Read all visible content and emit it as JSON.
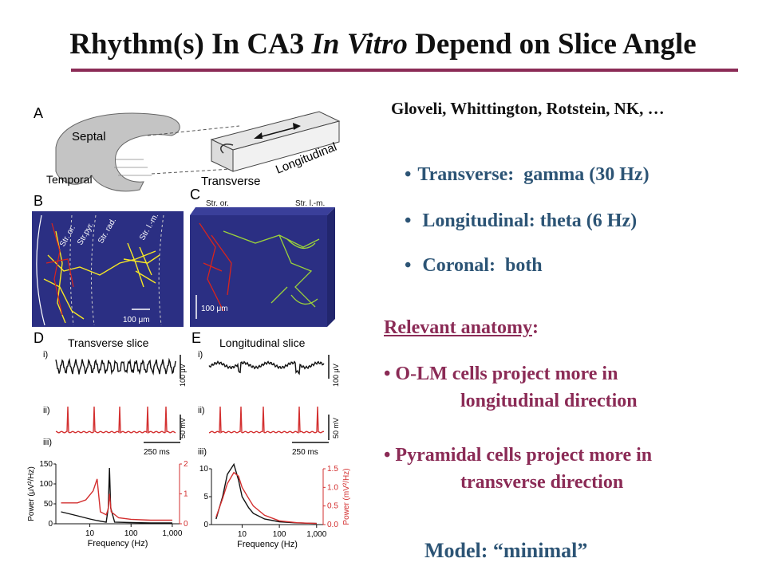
{
  "slide": {
    "title_parts": [
      "Rhythm(s) In CA3 ",
      "In Vitro",
      " Depend on Slice Angle"
    ],
    "authors": "Gloveli, Whittington, Rotstein, NK, …",
    "bullets": [
      {
        "label": "Transverse:",
        "value": "gamma (30 Hz)"
      },
      {
        "label": "Longitudinal:",
        "value": "theta (6 Hz)"
      },
      {
        "label": "Coronal:",
        "value": "both"
      }
    ],
    "anatomy": {
      "heading": "Relevant anatomy",
      "colon": ":",
      "items": [
        {
          "line1": "O-LM cells project more in",
          "line2": "longitudinal direction"
        },
        {
          "line1": "Pyramidal cells project more in",
          "line2": "transverse direction"
        }
      ]
    },
    "model": "Model:  “minimal”",
    "colors": {
      "accent": "#8b2b56",
      "bullet_text": "#2c5475",
      "trace_red": "#d32f2f",
      "panel_blue": "#2b2f83"
    }
  },
  "figure": {
    "panel_A": {
      "letter": "A",
      "septal": "Septal",
      "temporal": "Temporal",
      "transverse": "Transverse",
      "longitudinal": "Longitudinal"
    },
    "panel_B": {
      "letter": "B",
      "layers": [
        "Str. or.",
        "Str.pyr.",
        "Str. rad.",
        "Str. l.-m."
      ],
      "scale": "100 μm"
    },
    "panel_C": {
      "letter": "C",
      "layer_left": "Str. or.",
      "layer_right": "Str. l.-m.",
      "scale": "100 μm"
    },
    "panel_D": {
      "letter": "D",
      "title": "Transverse slice",
      "i": "i)",
      "ii": "ii)",
      "iii": "iii)",
      "v_scale": "100 μV",
      "mv_scale": "50 mV",
      "time_scale": "250 ms"
    },
    "panel_E": {
      "letter": "E",
      "title": "Longitudinal slice",
      "i": "i)",
      "ii": "ii)",
      "iii": "iii)",
      "v_scale": "100 μV",
      "mv_scale": "50 mV",
      "time_scale": "250 ms"
    }
  },
  "chart_data": [
    {
      "type": "line",
      "title": "",
      "x_scale": "log",
      "xlabel": "Frequency (Hz)",
      "x_ticks": [
        "10",
        "100",
        "1,000"
      ],
      "ylabel_left": "Power (μV²/Hz)",
      "ylim_left": [
        0,
        150
      ],
      "y_ticks_left": [
        "0",
        "50",
        "100",
        "150"
      ],
      "ylabel_right": "",
      "ylim_right": [
        0,
        2
      ],
      "y_ticks_right": [
        "0",
        "1",
        "2"
      ],
      "series": [
        {
          "color": "#111111",
          "x": [
            2,
            5,
            10,
            15,
            25,
            28,
            30,
            32,
            40,
            100,
            300,
            1000
          ],
          "y": [
            30,
            20,
            12,
            8,
            4,
            40,
            140,
            40,
            4,
            3,
            2,
            2
          ]
        },
        {
          "color": "#d32f2f",
          "x": [
            2,
            5,
            8,
            12,
            15,
            18,
            25,
            28,
            30,
            33,
            50,
            100,
            300,
            1000
          ],
          "y": [
            0.7,
            0.7,
            0.8,
            1.1,
            1.5,
            0.4,
            0.3,
            0.5,
            1.0,
            0.4,
            0.2,
            0.15,
            0.12,
            0.12
          ]
        }
      ]
    },
    {
      "type": "line",
      "title": "",
      "x_scale": "log",
      "xlabel": "Frequency (Hz)",
      "x_ticks": [
        "10",
        "100",
        "1,000"
      ],
      "ylabel_left": "",
      "ylim_left": [
        0,
        10
      ],
      "y_ticks_left": [
        "0",
        "5",
        "10"
      ],
      "ylabel_right": "Power (mV²/Hz)",
      "ylim_right": [
        0,
        1.5
      ],
      "y_ticks_right": [
        "0.0",
        "0.5",
        "1.0",
        "1.5"
      ],
      "series": [
        {
          "color": "#111111",
          "x": [
            2,
            3,
            4,
            6,
            8,
            10,
            15,
            20,
            40,
            100,
            300,
            1000
          ],
          "y": [
            1,
            5,
            9,
            10.8,
            8,
            5,
            3,
            2,
            1,
            0.5,
            0.3,
            0.2
          ]
        },
        {
          "color": "#d32f2f",
          "x": [
            2,
            3,
            4,
            6,
            8,
            10,
            15,
            20,
            40,
            100,
            300,
            1000
          ],
          "y": [
            0.2,
            0.7,
            1.1,
            1.4,
            1.3,
            1.0,
            0.7,
            0.5,
            0.25,
            0.1,
            0.05,
            0.03
          ]
        }
      ]
    }
  ]
}
